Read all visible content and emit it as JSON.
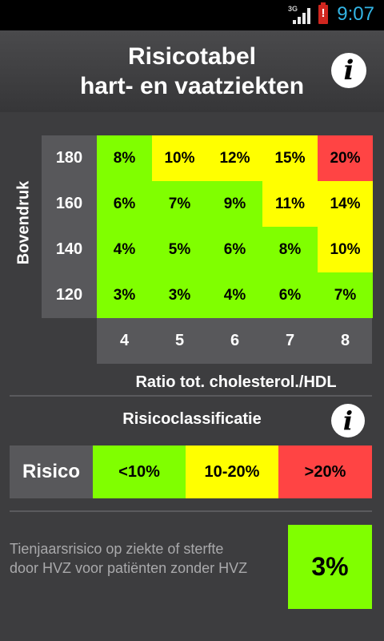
{
  "status_bar": {
    "network": "3G",
    "battery_alert": "!",
    "time": "9:07"
  },
  "header": {
    "title_line1": "Risicotabel",
    "title_line2": "hart- en vaatziekten",
    "info_icon": "info-icon"
  },
  "colors": {
    "green": "#80ff00",
    "yellow": "#ffff00",
    "red": "#ff4444",
    "accent": "#33b5e5"
  },
  "risk_table": {
    "y_label": "Bovendruk",
    "x_label": "Ratio tot. cholesterol./HDL",
    "rows": [
      "180",
      "160",
      "140",
      "120"
    ],
    "columns": [
      "4",
      "5",
      "6",
      "7",
      "8"
    ],
    "cells": [
      [
        {
          "v": "8%",
          "c": "green"
        },
        {
          "v": "10%",
          "c": "yellow"
        },
        {
          "v": "12%",
          "c": "yellow"
        },
        {
          "v": "15%",
          "c": "yellow"
        },
        {
          "v": "20%",
          "c": "red"
        }
      ],
      [
        {
          "v": "6%",
          "c": "green"
        },
        {
          "v": "7%",
          "c": "green"
        },
        {
          "v": "9%",
          "c": "green"
        },
        {
          "v": "11%",
          "c": "yellow"
        },
        {
          "v": "14%",
          "c": "yellow"
        }
      ],
      [
        {
          "v": "4%",
          "c": "green"
        },
        {
          "v": "5%",
          "c": "green"
        },
        {
          "v": "6%",
          "c": "green"
        },
        {
          "v": "8%",
          "c": "green"
        },
        {
          "v": "10%",
          "c": "yellow"
        }
      ],
      [
        {
          "v": "3%",
          "c": "green"
        },
        {
          "v": "3%",
          "c": "green"
        },
        {
          "v": "4%",
          "c": "green"
        },
        {
          "v": "6%",
          "c": "green"
        },
        {
          "v": "7%",
          "c": "green"
        }
      ]
    ]
  },
  "classification": {
    "title": "Risicoclassificatie",
    "label": "Risico",
    "levels": [
      {
        "label": "<10%",
        "c": "green"
      },
      {
        "label": "10-20%",
        "c": "yellow"
      },
      {
        "label": ">20%",
        "c": "red"
      }
    ]
  },
  "result": {
    "description": "Tienjaarsrisico op ziekte of sterfte door HVZ voor patiënten zonder HVZ",
    "value": "3%",
    "c": "green"
  }
}
